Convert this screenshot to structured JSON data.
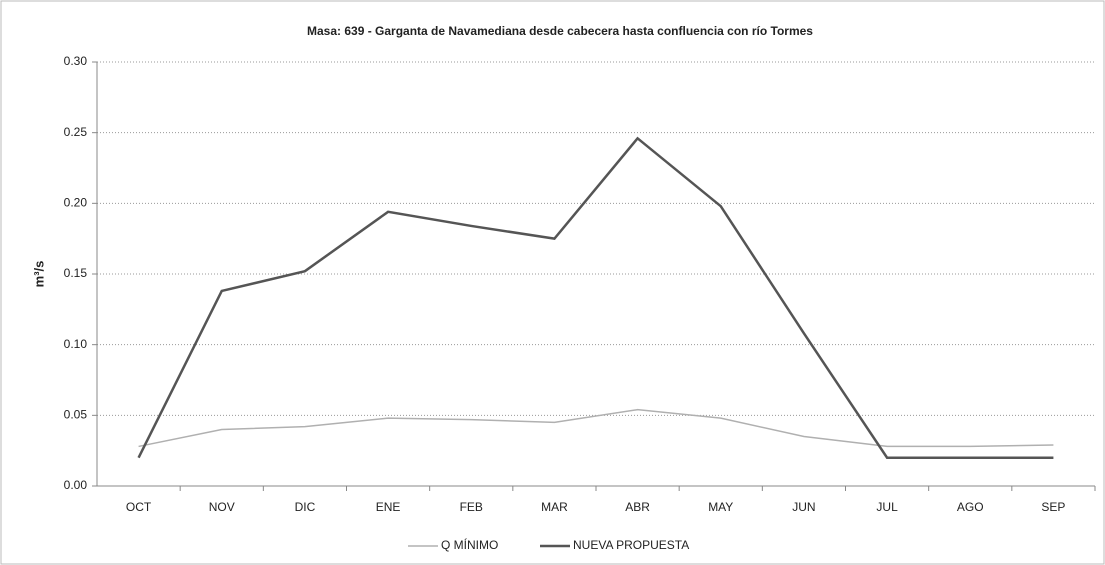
{
  "chart_data": {
    "type": "line",
    "title": "Masa: 639 - Garganta de Navamediana desde cabecera hasta confluencia con río Tormes",
    "y_label": "m³/s",
    "categories": [
      "OCT",
      "NOV",
      "DIC",
      "ENE",
      "FEB",
      "MAR",
      "ABR",
      "MAY",
      "JUN",
      "JUL",
      "AGO",
      "SEP"
    ],
    "series": [
      {
        "name": "Q MÍNIMO",
        "color": "#b0b0b0",
        "values": [
          0.028,
          0.04,
          0.042,
          0.048,
          0.047,
          0.045,
          0.054,
          0.048,
          0.035,
          0.028,
          0.028,
          0.029
        ]
      },
      {
        "name": "NUEVA PROPUESTA",
        "color": "#555555",
        "values": [
          0.02,
          0.138,
          0.152,
          0.194,
          0.184,
          0.175,
          0.246,
          0.198,
          0.108,
          0.02,
          0.02,
          0.02
        ]
      }
    ],
    "ylim": [
      0,
      0.3
    ],
    "yticks": [
      {
        "value": 0,
        "label": "0.00"
      },
      {
        "value": 0.05,
        "label": "0.05"
      },
      {
        "value": 0.1,
        "label": "0.10"
      },
      {
        "value": 0.15,
        "label": "0.15"
      },
      {
        "value": 0.2,
        "label": "0.20"
      },
      {
        "value": 0.25,
        "label": "0.25"
      },
      {
        "value": 0.3,
        "label": "0.30"
      }
    ],
    "grid": true
  }
}
